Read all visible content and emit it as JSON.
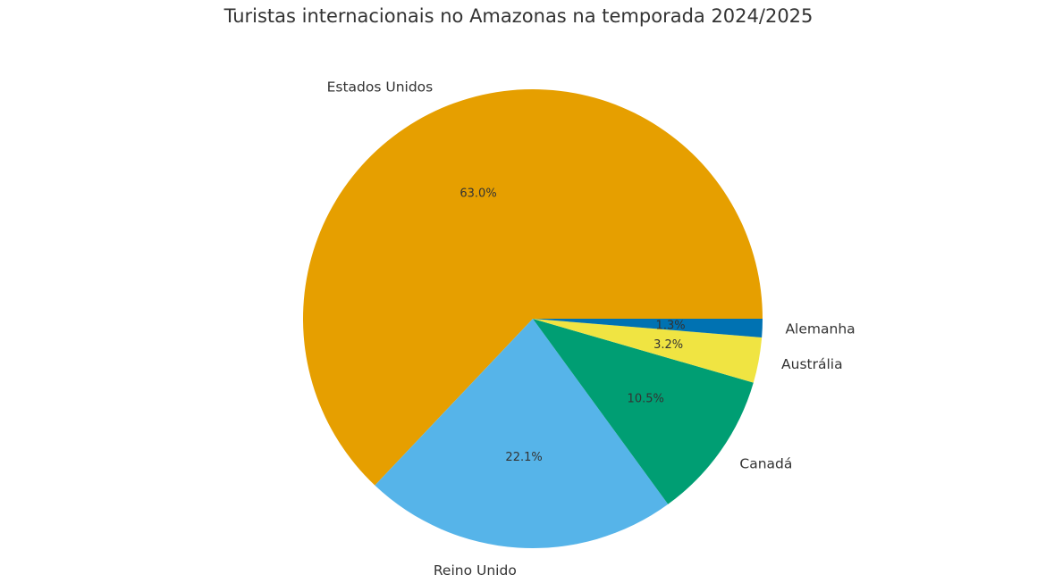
{
  "chart_data": {
    "type": "pie",
    "title": "Turistas internacionais no Amazonas na temporada 2024/2025",
    "categories": [
      "Estados Unidos",
      "Reino Unido",
      "Canadá",
      "Austrália",
      "Alemanha"
    ],
    "values": [
      63.0,
      22.1,
      10.5,
      3.2,
      1.3
    ],
    "labels_pct": [
      "63.0%",
      "22.1%",
      "10.5%",
      "3.2%",
      "1.3%"
    ],
    "colors": [
      "#E69F00",
      "#56B4E9",
      "#009E73",
      "#F0E442",
      "#0072B2"
    ],
    "start_angle": 0,
    "direction": "counterclockwise"
  }
}
